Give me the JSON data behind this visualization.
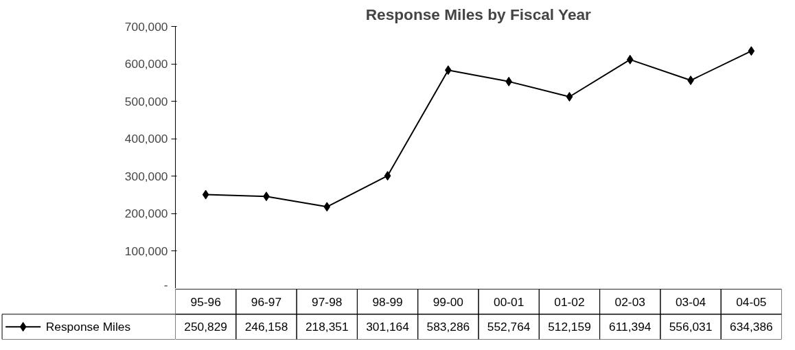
{
  "chart_data": {
    "type": "line",
    "title": "Response Miles by Fiscal Year",
    "categories": [
      "95-96",
      "96-97",
      "97-98",
      "98-99",
      "99-00",
      "00-01",
      "01-02",
      "02-03",
      "03-04",
      "04-05"
    ],
    "series": [
      {
        "name": "Response Miles",
        "color": "#000000",
        "values": [
          250829,
          246158,
          218351,
          301164,
          583286,
          552764,
          512159,
          611394,
          556031,
          634386
        ],
        "value_labels": [
          "250,829",
          "246,158",
          "218,351",
          "301,164",
          "583,286",
          "552,764",
          "512,159",
          "611,394",
          "556,031",
          "634,386"
        ]
      }
    ],
    "ylim": [
      0,
      700000
    ],
    "yticks": [
      {
        "value": 0,
        "label": "-"
      },
      {
        "value": 100000,
        "label": "100,000"
      },
      {
        "value": 200000,
        "label": "200,000"
      },
      {
        "value": 300000,
        "label": "300,000"
      },
      {
        "value": 400000,
        "label": "400,000"
      },
      {
        "value": 500000,
        "label": "500,000"
      },
      {
        "value": 600000,
        "label": "600,000"
      },
      {
        "value": 700000,
        "label": "700,000"
      }
    ],
    "marker": "diamond",
    "line_style": "solid",
    "legend": "bottom"
  }
}
